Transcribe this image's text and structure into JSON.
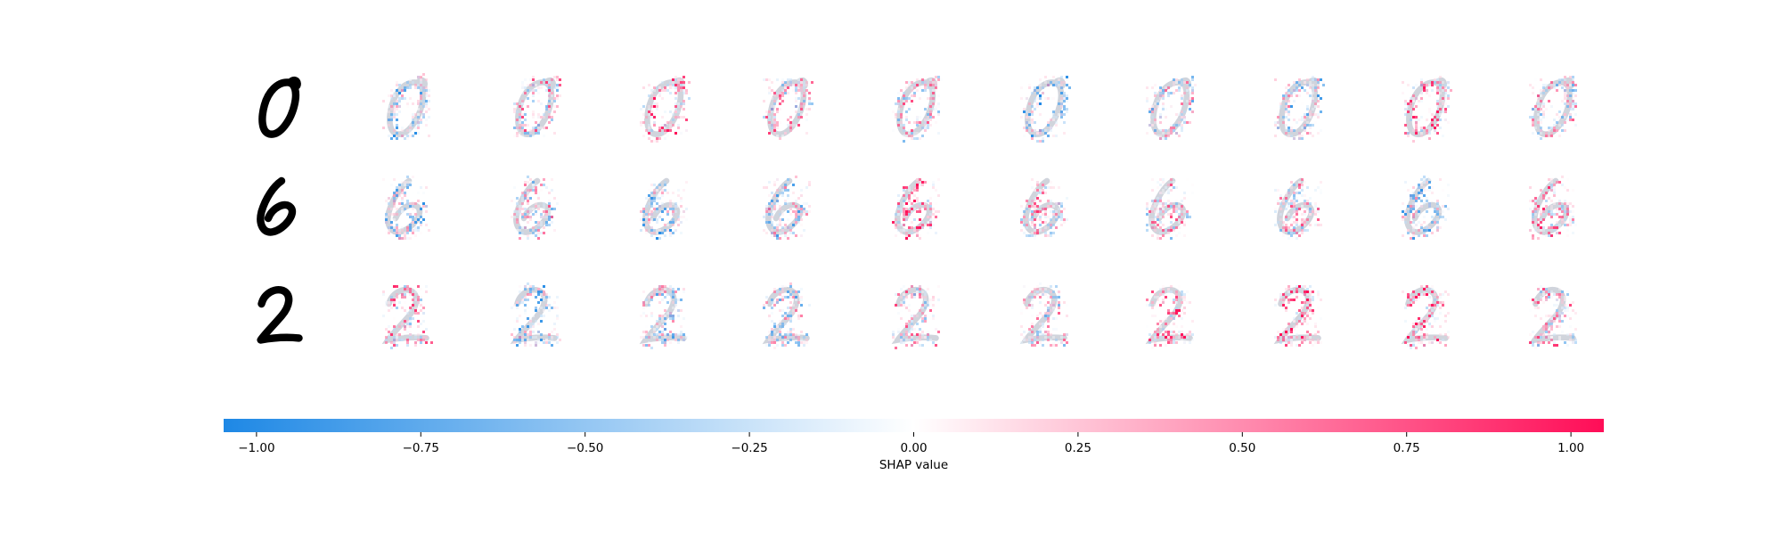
{
  "chart_data": {
    "type": "heatmap",
    "description_type": "image-grid-with-colorbar",
    "rows": [
      {
        "input_digit": "0",
        "explanations": 10
      },
      {
        "input_digit": "6",
        "explanations": 10
      },
      {
        "input_digit": "2",
        "explanations": 10
      }
    ],
    "colorbar": {
      "label": "SHAP value",
      "vmin": -1.0,
      "vmax": 1.0,
      "ticks": [
        -1.0,
        -0.75,
        -0.5,
        -0.25,
        0.0,
        0.25,
        0.5,
        0.75,
        1.0
      ],
      "tick_labels": [
        "−1.00",
        "−0.75",
        "−0.50",
        "−0.25",
        "0.00",
        "0.25",
        "0.50",
        "0.75",
        "1.00"
      ],
      "range": [
        -1.05,
        1.05
      ],
      "colors": {
        "negative": "#1E88E5",
        "neutral": "#FFFFFF",
        "positive": "#FF0D57"
      }
    },
    "grid": false
  }
}
